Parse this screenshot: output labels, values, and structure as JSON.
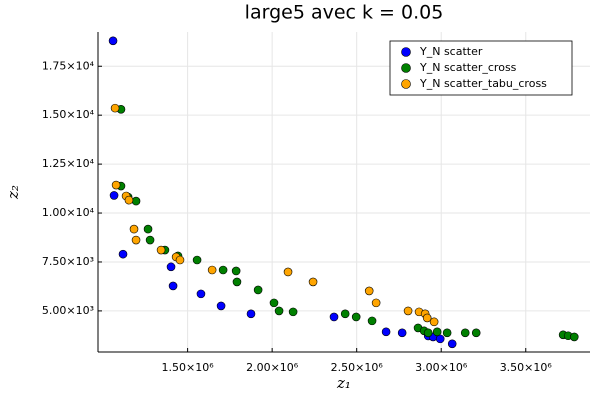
{
  "chart_data": {
    "type": "scatter",
    "title": "large5 avec k = 0.05",
    "x_label": "z₁",
    "y_label": "z₂",
    "xlim": [
      970000,
      3880000
    ],
    "ylim": [
      2900,
      19250
    ],
    "xticks": [
      {
        "value": 1500000,
        "label": "1.50×10⁶"
      },
      {
        "value": 2000000,
        "label": "2.00×10⁶"
      },
      {
        "value": 2500000,
        "label": "2.50×10⁶"
      },
      {
        "value": 3000000,
        "label": "3.00×10⁶"
      },
      {
        "value": 3500000,
        "label": "3.50×10⁶"
      }
    ],
    "yticks": [
      {
        "value": 5000,
        "label": "5.00×10³"
      },
      {
        "value": 7500,
        "label": "7.50×10³"
      },
      {
        "value": 10000,
        "label": "1.00×10⁴"
      },
      {
        "value": 12500,
        "label": "1.25×10⁴"
      },
      {
        "value": 15000,
        "label": "1.50×10⁴"
      },
      {
        "value": 17500,
        "label": "1.75×10⁴"
      }
    ],
    "grid": true,
    "legend": "top-right",
    "series": [
      {
        "name": "Y_N scatter",
        "color": "#0000ff",
        "x": [
          1059000,
          1065000,
          1118000,
          1402000,
          1414000,
          1579000,
          1698000,
          1875000,
          2366000,
          2674000,
          2769000,
          2923000,
          2952000,
          2994000,
          3065000
        ],
        "values": [
          18800,
          10900,
          7900,
          7250,
          6275,
          5870,
          5255,
          4850,
          4690,
          3930,
          3880,
          3720,
          3670,
          3570,
          3320
        ]
      },
      {
        "name": "Y_N scatter_cross",
        "color": "#008000",
        "x": [
          1106000,
          1106000,
          1148000,
          1195000,
          1266000,
          1278000,
          1366000,
          1443000,
          1556000,
          1710000,
          1787000,
          1792000,
          1917000,
          2011000,
          2041000,
          2124000,
          2432000,
          2497000,
          2591000,
          2863000,
          2899000,
          2923000,
          2976000,
          3035000,
          3142000,
          3207000,
          3721000,
          3751000,
          3787000
        ],
        "values": [
          15300,
          11380,
          10820,
          10610,
          9180,
          8620,
          8110,
          7810,
          7600,
          7090,
          7040,
          6480,
          6070,
          5410,
          5000,
          4950,
          4850,
          4690,
          4490,
          4130,
          3980,
          3880,
          3930,
          3880,
          3880,
          3880,
          3780,
          3730,
          3670
        ]
      },
      {
        "name": "Y_N scatter_tabu_cross",
        "color": "#ffa500",
        "x": [
          1071000,
          1077000,
          1136000,
          1153000,
          1183000,
          1195000,
          1343000,
          1432000,
          1455000,
          1645000,
          2094000,
          2242000,
          2574000,
          2615000,
          2804000,
          2869000,
          2905000,
          2917000,
          2958000
        ],
        "values": [
          15360,
          11430,
          10870,
          10660,
          9180,
          8620,
          8110,
          7755,
          7600,
          7090,
          6990,
          6480,
          6020,
          5410,
          5000,
          4950,
          4850,
          4640,
          4440
        ]
      }
    ]
  }
}
